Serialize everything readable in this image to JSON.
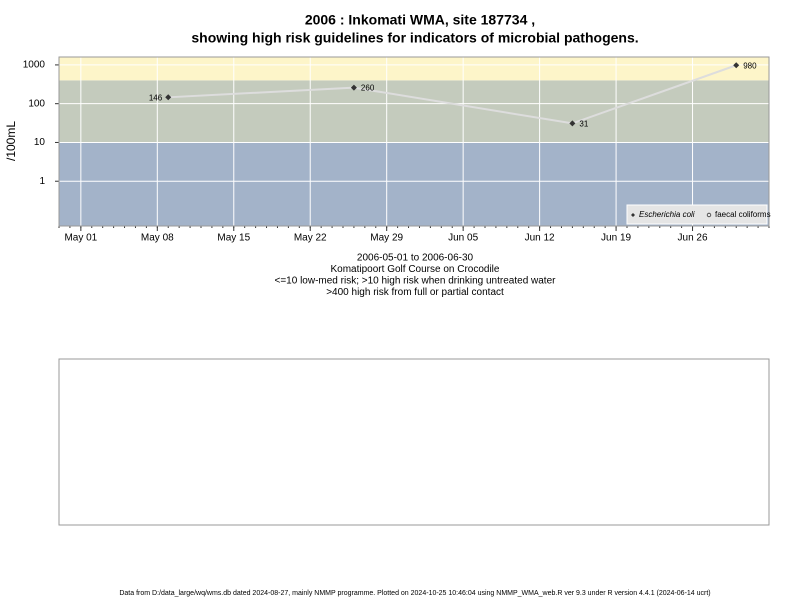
{
  "chart_data": {
    "type": "line",
    "title": "2006 : Inkomati WMA, site 187734 ,",
    "subtitle": "showing high risk guidelines for indicators of microbial pathogens.",
    "y_label": "/100mL",
    "notes": [
      "2006-05-01 to 2006-06-30",
      "Komatipoort Golf Course on Crocodile",
      "<=10 low-med risk; >10 high risk when drinking untreated water",
      ">400 high risk from full or partial contact"
    ],
    "footer": "Data from D:/data_large/wq/wms.db dated 2024-08-27, mainly NMMP programme. Plotted on 2024-10-25 10:46:04 using NMMP_WMA_web.R ver 9.3 under R version 4.4.1 (2024-06-14 ucrt)",
    "x": [
      "2006-05-09",
      "2006-05-26",
      "2006-06-15",
      "2006-06-30"
    ],
    "series": [
      {
        "name": "Escherichia coli",
        "color": "#333333",
        "values": [
          146,
          260,
          31,
          980
        ]
      },
      {
        "name": "faecal coliforms",
        "color": "#333333",
        "values": [
          null,
          null,
          null,
          null
        ]
      }
    ],
    "line_color": "#dddddd",
    "log_y": true,
    "grid": true,
    "legend": "bottom-right",
    "ylim": [
      0.07,
      1600
    ],
    "yticks": [
      1,
      10,
      100,
      1000
    ],
    "xlim": [
      "2006-04-29",
      "2006-07-03"
    ],
    "xticks": [
      {
        "value": "2006-05-01",
        "label": "May 01"
      },
      {
        "value": "2006-05-08",
        "label": "May 08"
      },
      {
        "value": "2006-05-15",
        "label": "May 15"
      },
      {
        "value": "2006-05-22",
        "label": "May 22"
      },
      {
        "value": "2006-05-29",
        "label": "May 29"
      },
      {
        "value": "2006-06-05",
        "label": "Jun 05"
      },
      {
        "value": "2006-06-12",
        "label": "Jun 12"
      },
      {
        "value": "2006-06-19",
        "label": "Jun 19"
      },
      {
        "value": "2006-06-26",
        "label": "Jun 26"
      }
    ],
    "bands": [
      {
        "upper": 10,
        "color": "#a3b3c9"
      },
      {
        "upper": 400,
        "color": "#c4cbbd"
      },
      {
        "color": "#fdf5c9"
      }
    ]
  }
}
